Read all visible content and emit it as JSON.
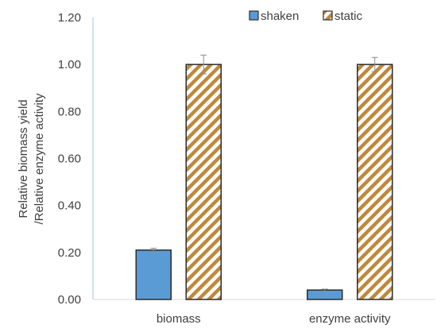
{
  "chart_data": {
    "type": "bar",
    "title": "",
    "ylabel_lines": [
      "Relative biomass yield",
      "/Relative enzyme activity"
    ],
    "xlabel": "",
    "categories": [
      "biomass",
      "enzyme activity"
    ],
    "series": [
      {
        "name": "shaken",
        "values": [
          0.21,
          0.04
        ],
        "errors": [
          0.008,
          0.004
        ],
        "fill": "#5b9bd5",
        "pattern": "solid"
      },
      {
        "name": "static",
        "values": [
          1.0,
          1.0
        ],
        "errors": [
          0.04,
          0.03
        ],
        "fill": "#c0883a",
        "pattern": "diagonal-stripes"
      }
    ],
    "ylim": [
      0,
      1.2
    ],
    "yticks": [
      "0.00",
      "0.20",
      "0.40",
      "0.60",
      "0.80",
      "1.00",
      "1.20"
    ],
    "grid": false,
    "legend_position": "top-right"
  }
}
